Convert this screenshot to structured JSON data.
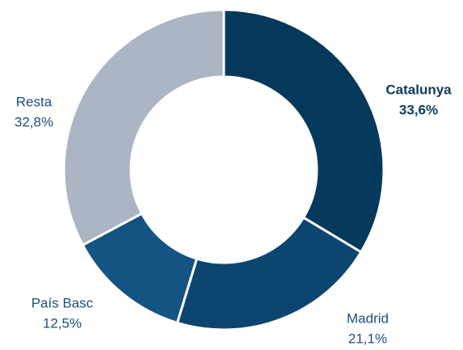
{
  "chart_data": {
    "type": "pie",
    "categories": [
      "Catalunya",
      "Madrid",
      "País Basc",
      "Resta"
    ],
    "values": [
      33.6,
      21.1,
      12.5,
      32.8
    ],
    "value_labels": [
      "33,6%",
      "21,1%",
      "12,5%",
      "32,8%"
    ],
    "colors": [
      "#04395c",
      "#0c4670",
      "#135482",
      "#abb5c4"
    ]
  }
}
